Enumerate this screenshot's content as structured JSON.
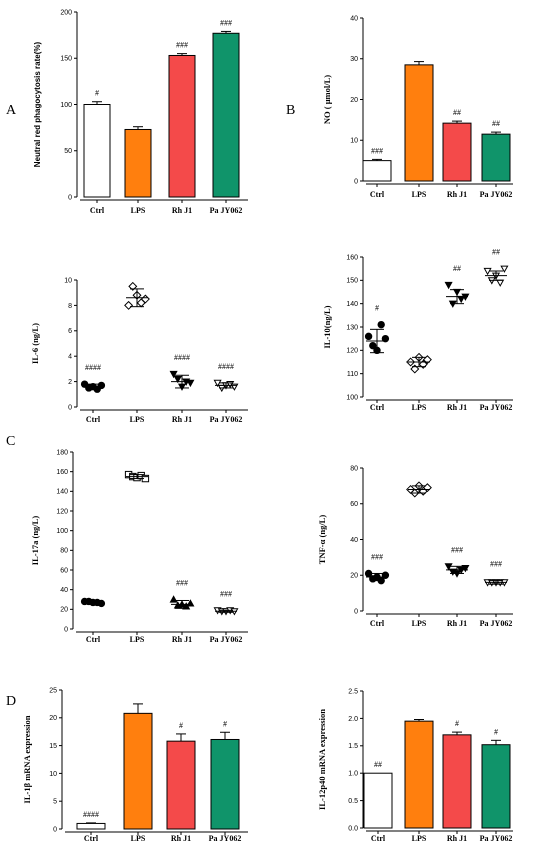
{
  "panel_labels": [
    "A",
    "B",
    "C",
    "D"
  ],
  "colors": {
    "ctrl": "#ffffff",
    "lps": "#ff7f0e",
    "rh": "#f44a4a",
    "pa": "#10946a",
    "axis": "#000000"
  },
  "chart_data": [
    {
      "id": "neutral-red",
      "type": "bar",
      "categories": [
        "Ctrl",
        "LPS",
        "Rh J1",
        "Pa JY062"
      ],
      "values": [
        100,
        73,
        153,
        177
      ],
      "errors": [
        3,
        3,
        2,
        2
      ],
      "annotations": [
        "#",
        "",
        "###",
        "###"
      ],
      "ylabel": "Neutral red phagocytosis rate(%)",
      "ylim": [
        0,
        200
      ],
      "yticks": [
        0,
        50,
        100,
        150,
        200
      ]
    },
    {
      "id": "no",
      "type": "bar",
      "categories": [
        "Ctrl",
        "LPS",
        "Rh J1",
        "Pa JY062"
      ],
      "values": [
        5,
        28.5,
        14.2,
        11.5
      ],
      "errors": [
        0.3,
        0.8,
        0.5,
        0.5
      ],
      "annotations": [
        "###",
        "",
        "##",
        "##"
      ],
      "ylabel": "NO ( μmol/L)",
      "ylim": [
        0,
        40
      ],
      "yticks": [
        0,
        10,
        20,
        30,
        40
      ]
    },
    {
      "id": "il6",
      "type": "scatter",
      "categories": [
        "Ctrl",
        "LPS",
        "Rh J1",
        "Pa JY062"
      ],
      "markers": [
        "circle",
        "diamond",
        "triangle-down",
        "triangle-down-open"
      ],
      "points": [
        [
          1.8,
          1.5,
          1.6,
          1.4,
          1.7
        ],
        [
          8.0,
          9.5,
          8.8,
          8.2,
          8.5
        ],
        [
          2.6,
          2.2,
          1.6,
          2.0,
          1.9
        ],
        [
          1.9,
          1.5,
          1.7,
          1.8,
          1.6
        ]
      ],
      "means": [
        1.6,
        8.6,
        2.0,
        1.7
      ],
      "sds": [
        0.2,
        0.7,
        0.5,
        0.2
      ],
      "annotations": [
        "####",
        "",
        "####",
        "####"
      ],
      "ylabel": "IL-6 (ng/L)",
      "ylim": [
        0,
        10
      ],
      "yticks": [
        0,
        2,
        4,
        6,
        8,
        10
      ]
    },
    {
      "id": "il10",
      "type": "scatter",
      "categories": [
        "Ctrl",
        "LPS",
        "Rh J1",
        "Pa JY062"
      ],
      "markers": [
        "circle",
        "diamond",
        "triangle-down",
        "triangle-down-open"
      ],
      "points": [
        [
          126,
          122,
          120,
          131,
          125
        ],
        [
          115,
          112,
          117,
          114,
          116
        ],
        [
          148,
          140,
          145,
          142,
          143
        ],
        [
          154,
          150,
          152,
          149,
          155
        ]
      ],
      "means": [
        124,
        115,
        143,
        152
      ],
      "sds": [
        5,
        2,
        3,
        2
      ],
      "annotations": [
        "#",
        "",
        "##",
        "##"
      ],
      "ylabel": "IL-10(ng/L)",
      "ylim": [
        100,
        160
      ],
      "yticks": [
        100,
        110,
        120,
        130,
        140,
        150,
        160
      ]
    },
    {
      "id": "il17a",
      "type": "scatter",
      "categories": [
        "Ctrl",
        "LPS",
        "Rh J1",
        "Pa JY062"
      ],
      "markers": [
        "circle",
        "square-open",
        "triangle-up",
        "triangle-down-open"
      ],
      "points": [
        [
          28,
          28,
          27,
          27,
          26
        ],
        [
          157,
          155,
          154,
          156,
          153
        ],
        [
          30,
          24,
          25,
          23,
          26
        ],
        [
          19,
          18,
          18,
          19,
          18
        ]
      ],
      "means": [
        27,
        155,
        25,
        18
      ],
      "sds": [
        1,
        2,
        4,
        1
      ],
      "annotations": [
        "",
        "",
        "###",
        "###"
      ],
      "ylabel": "IL-17a (ng/L)",
      "ylim": [
        0,
        180
      ],
      "yticks": [
        0,
        20,
        40,
        60,
        80,
        100,
        120,
        140,
        160,
        180
      ]
    },
    {
      "id": "tnfa",
      "type": "scatter",
      "categories": [
        "Ctrl",
        "LPS",
        "Rh J1",
        "Pa JY062"
      ],
      "markers": [
        "circle",
        "diamond",
        "triangle-down",
        "triangle-down-open"
      ],
      "points": [
        [
          21,
          18,
          19,
          17,
          20
        ],
        [
          68,
          66,
          70,
          67,
          69
        ],
        [
          25,
          22,
          21,
          23,
          24
        ],
        [
          16,
          16,
          16,
          16,
          16
        ]
      ],
      "means": [
        19,
        68,
        23,
        16
      ],
      "sds": [
        2,
        2,
        2,
        1
      ],
      "annotations": [
        "###",
        "",
        "###",
        "###"
      ],
      "ylabel": "TNF-α (ng/L)",
      "ylim": [
        0,
        80
      ],
      "yticks": [
        0,
        20,
        40,
        60,
        80
      ]
    },
    {
      "id": "il1b",
      "type": "bar",
      "categories": [
        "Ctrl",
        "LPS",
        "Rh J1",
        "Pa JY062"
      ],
      "values": [
        1,
        20.8,
        15.8,
        16.1
      ],
      "errors": [
        0.1,
        1.7,
        1.3,
        1.3
      ],
      "annotations": [
        "####",
        "",
        "#",
        "#"
      ],
      "ylabel": "IL-1β mRNA expression",
      "ylim": [
        0,
        25
      ],
      "yticks": [
        0,
        5,
        10,
        15,
        20,
        25
      ]
    },
    {
      "id": "il12p40",
      "type": "bar",
      "categories": [
        "Ctrl",
        "LPS",
        "Rh J1",
        "Pa JY062"
      ],
      "values": [
        1.0,
        1.95,
        1.7,
        1.52
      ],
      "errors": [
        0,
        0.03,
        0.05,
        0.08
      ],
      "annotations": [
        "##",
        "",
        "#",
        "#"
      ],
      "ylabel": "IL-12p40 mRNA expression",
      "ylim": [
        0.0,
        2.5
      ],
      "yticks": [
        "0.0",
        "0.5",
        "1.0",
        "1.5",
        "2.0",
        "2.5"
      ]
    }
  ]
}
